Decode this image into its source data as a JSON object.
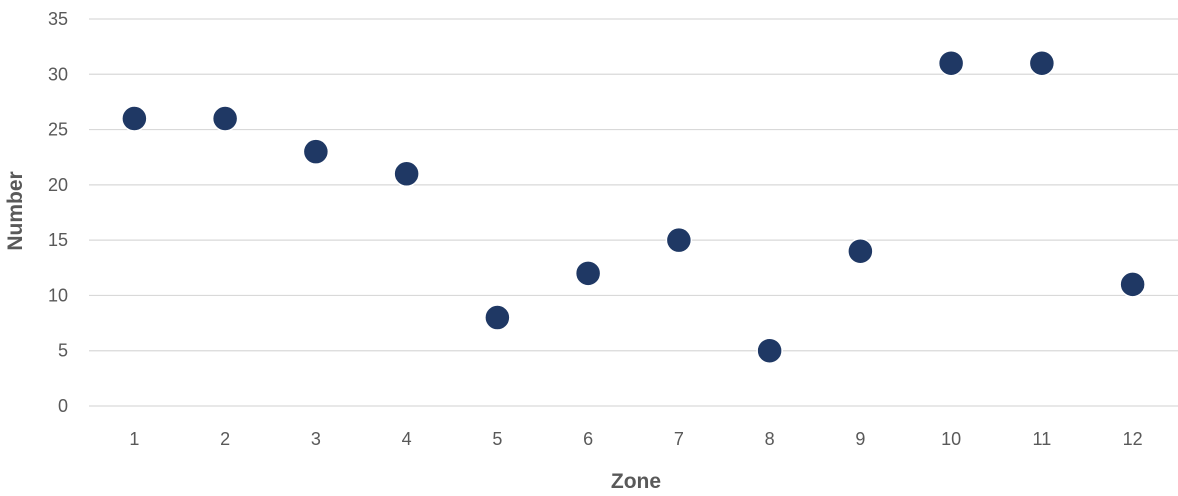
{
  "chart_data": {
    "type": "scatter",
    "title": "",
    "xlabel": "Zone",
    "ylabel": "Number",
    "x": [
      1,
      2,
      3,
      4,
      5,
      6,
      7,
      8,
      9,
      10,
      11,
      12
    ],
    "series": [
      {
        "values": [
          26,
          26,
          23,
          21,
          8,
          12,
          15,
          5,
          14,
          31,
          31,
          11
        ]
      }
    ],
    "x_tick_labels": [
      "1",
      "2",
      "3",
      "4",
      "5",
      "6",
      "7",
      "8",
      "9",
      "10",
      "11",
      "12"
    ],
    "y_tick_labels": [
      "0",
      "5",
      "10",
      "15",
      "20",
      "25",
      "30",
      "35"
    ],
    "ylim": [
      0,
      35
    ],
    "xlim": [
      0.5,
      12.5
    ],
    "grid": true,
    "legend": "none",
    "marker_color": "#1f3864"
  }
}
